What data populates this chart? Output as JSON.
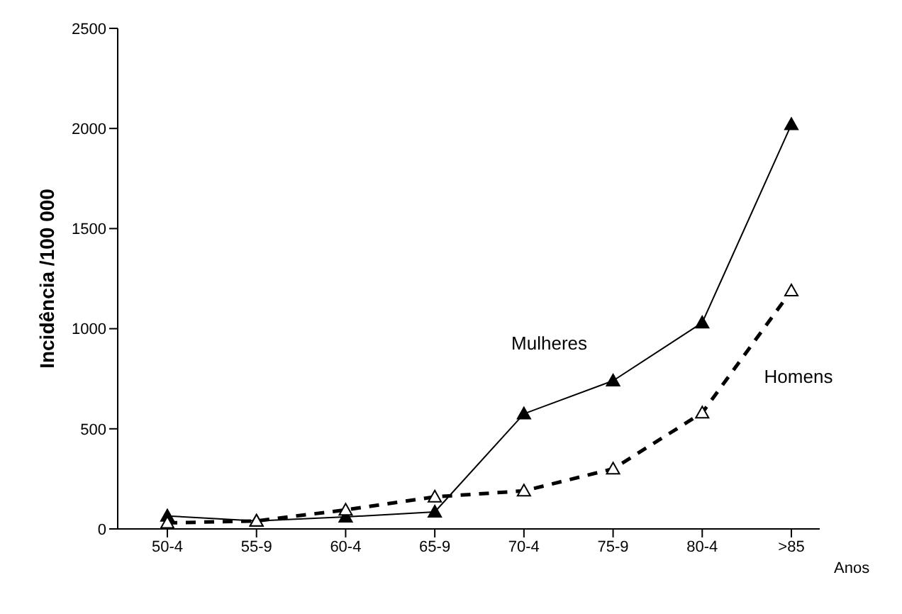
{
  "chart_data": {
    "type": "line",
    "xlabel": "Anos",
    "ylabel": "Incidência /100 000",
    "categories": [
      "50-4",
      "55-9",
      "60-4",
      "65-9",
      "70-4",
      "75-9",
      "80-4",
      ">85"
    ],
    "series": [
      {
        "name": "Mulheres",
        "color": "#000000",
        "line_style": "solid",
        "values": [
          65,
          40,
          60,
          85,
          575,
          740,
          1030,
          2020
        ]
      },
      {
        "name": "Homens",
        "color": "#000000",
        "line_style": "dashed",
        "values": [
          30,
          40,
          95,
          160,
          190,
          300,
          580,
          1190
        ]
      }
    ],
    "ylim": [
      0,
      2500
    ],
    "yticks": [
      0,
      500,
      1000,
      1500,
      2000,
      2500
    ],
    "grid": false,
    "legend": false,
    "marker": "triangle"
  }
}
